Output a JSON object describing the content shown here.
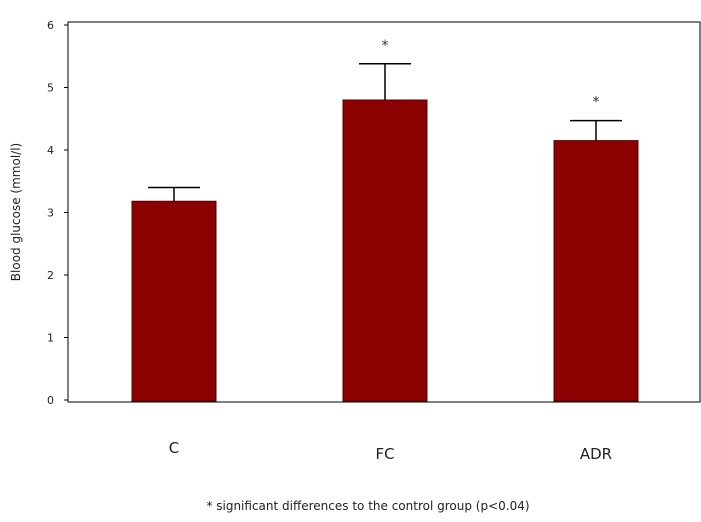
{
  "chart_data": {
    "type": "bar",
    "categories": [
      "C",
      "FC",
      "ADR"
    ],
    "values": [
      3.18,
      4.8,
      4.15
    ],
    "errors": [
      0.22,
      0.58,
      0.32
    ],
    "markers": [
      "",
      "*",
      "*"
    ],
    "ylabel": "Blood glucose (mmol/l)",
    "xlabel": "",
    "ylim": [
      0,
      6
    ],
    "yticks": [
      "0",
      "1",
      "2",
      "3",
      "4",
      "5",
      "6"
    ],
    "grid": false,
    "bar_color": "#8b0000",
    "bar_edge_color": "#5a0000",
    "footnote": "* significant differences to the control group (p<0.04)"
  }
}
